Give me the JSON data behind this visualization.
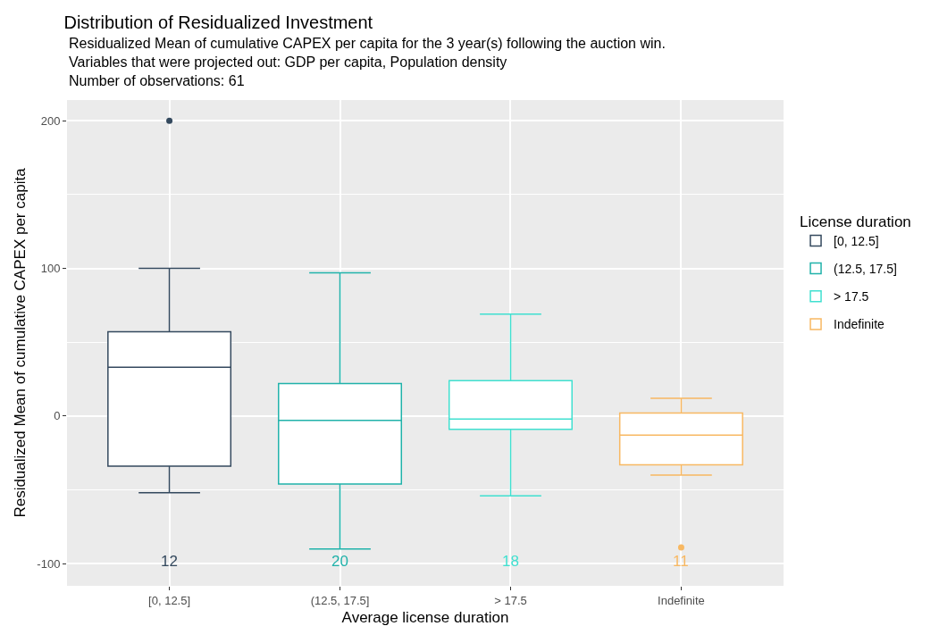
{
  "chart_data": {
    "type": "box",
    "title": "Distribution of Residualized Investment",
    "subtitle": "Residualized Mean of cumulative CAPEX per capita for the 3 year(s) following the auction win.\nVariables that were projected out: GDP per capita, Population density\nNumber of observations: 61",
    "xlabel": "Average license duration",
    "ylabel": "Residualized Mean of cumulative CAPEX per capita",
    "legend_title": "License duration",
    "categories": [
      "[0, 12.5]",
      "(12.5, 17.5]",
      "> 17.5",
      "Indefinite"
    ],
    "series": [
      {
        "name": "[0, 12.5]",
        "color": "#34495e",
        "boxes": [
          {
            "low": -52,
            "q1": -34,
            "median": 33,
            "q3": 57,
            "high": 100,
            "outliers": [
              200
            ]
          },
          null,
          null,
          null
        ]
      },
      {
        "name": "(12.5, 17.5]",
        "color": "#20b2aa",
        "boxes": [
          null,
          {
            "low": -90,
            "q1": -46,
            "median": -3,
            "q3": 22,
            "high": 97
          },
          null,
          null
        ]
      },
      {
        "name": "> 17.5",
        "color": "#40e0d0",
        "boxes": [
          null,
          null,
          {
            "low": -54,
            "q1": -9,
            "median": -2,
            "q3": 24,
            "high": 69
          },
          null
        ]
      },
      {
        "name": "Indefinite",
        "color": "#f8b862",
        "boxes": [
          null,
          null,
          null,
          {
            "low": -40,
            "q1": -33,
            "median": -13,
            "q3": 2,
            "high": 12,
            "outliers": [
              -89
            ]
          }
        ]
      }
    ],
    "annotations": [
      "12",
      "20",
      "18",
      "11"
    ],
    "ylim": [
      -115,
      214
    ],
    "yticks": [
      -100,
      0,
      100,
      200
    ],
    "grid": true,
    "legend": "right"
  }
}
